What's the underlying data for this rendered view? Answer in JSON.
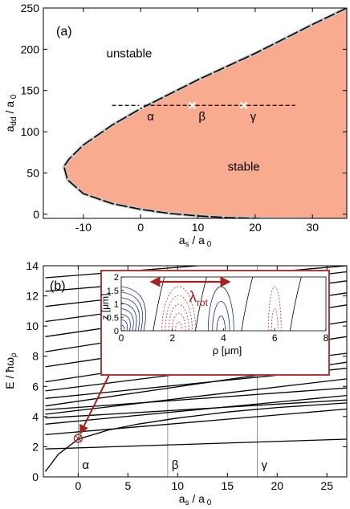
{
  "colors": {
    "stable_fill": "#f8ab8f",
    "curve": "#000000",
    "dash_highlight": "#c8c8c8",
    "inset_border": "#b03a3a",
    "arrow": "#a52020",
    "marker": "#ffffff",
    "contour_blue": "#1a2b8c",
    "contour_red": "#d42a2a"
  },
  "chart_data": [
    {
      "type": "area",
      "panel_label": "(a)",
      "xlabel": "a_s / a_0",
      "ylabel": "a_dd / a_0",
      "xlim": [
        -17,
        36
      ],
      "ylim": [
        -5,
        250
      ],
      "xticks": [
        -10,
        0,
        10,
        20,
        30
      ],
      "yticks": [
        0,
        50,
        100,
        150,
        200,
        250
      ],
      "grid": false,
      "region_labels": [
        {
          "text": "unstable",
          "x": -2,
          "y": 190
        },
        {
          "text": "stable",
          "x": 18,
          "y": 53
        }
      ],
      "stability_boundary": {
        "x": [
          36,
          30,
          20,
          10,
          0,
          -5,
          -10,
          -12.5,
          -13.4,
          -12.8,
          -10,
          -5,
          0,
          5,
          10,
          15,
          20,
          25,
          30,
          36
        ],
        "y": [
          250,
          230,
          195,
          163,
          128,
          108,
          84,
          67,
          58,
          42,
          25,
          13,
          6,
          1,
          -2,
          -4,
          -5,
          -6,
          -6,
          -7
        ]
      },
      "dashed_line": {
        "x": [
          -5,
          27
        ],
        "y": 132
      },
      "markers": [
        {
          "label": "α",
          "x": 0,
          "y": 132
        },
        {
          "label": "β",
          "x": 9,
          "y": 132
        },
        {
          "label": "γ",
          "x": 18,
          "y": 132
        }
      ]
    },
    {
      "type": "line",
      "panel_label": "(b)",
      "xlabel": "a_s / a_0",
      "ylabel": "E / ħω_ρ",
      "xlim": [
        -3.5,
        27
      ],
      "ylim": [
        0,
        14
      ],
      "xticks": [
        0,
        5,
        10,
        15,
        20,
        25
      ],
      "yticks": [
        0,
        2,
        4,
        6,
        8,
        10,
        12,
        14
      ],
      "grid": false,
      "vertical_markers": [
        {
          "label": "α",
          "x": 0
        },
        {
          "label": "β",
          "x": 9
        },
        {
          "label": "γ",
          "x": 18
        }
      ],
      "series": [
        {
          "x": [
            -3.3,
            -2,
            0,
            3,
            6,
            10,
            15,
            20,
            27
          ],
          "y": [
            0.35,
            1.5,
            2.5,
            3.1,
            3.5,
            3.9,
            4.3,
            4.6,
            4.9
          ]
        },
        {
          "x": [
            -3.3,
            27
          ],
          "y": [
            1.85,
            2.5
          ]
        },
        {
          "x": [
            -3.3,
            27
          ],
          "y": [
            2.8,
            4.5
          ]
        },
        {
          "x": [
            -3.3,
            27
          ],
          "y": [
            3.5,
            5.4
          ]
        },
        {
          "x": [
            -3.3,
            27
          ],
          "y": [
            3.9,
            5.1
          ]
        },
        {
          "x": [
            -3.3,
            27
          ],
          "y": [
            4.15,
            6.5
          ]
        },
        {
          "x": [
            -3.3,
            27
          ],
          "y": [
            4.45,
            5.9
          ]
        },
        {
          "x": [
            -3.3,
            27
          ],
          "y": [
            4.7,
            7.6
          ]
        },
        {
          "x": [
            -3.3,
            27
          ],
          "y": [
            5.2,
            7.2
          ]
        },
        {
          "x": [
            -3.3,
            27
          ],
          "y": [
            5.7,
            8.2
          ]
        },
        {
          "x": [
            -3.3,
            27
          ],
          "y": [
            6.3,
            9.3
          ]
        },
        {
          "x": [
            -3.3,
            27
          ],
          "y": [
            7.3,
            10.3
          ]
        },
        {
          "x": [
            -3.3,
            27
          ],
          "y": [
            8.3,
            11.4
          ]
        },
        {
          "x": [
            -3.3,
            27
          ],
          "y": [
            9.3,
            12.2
          ]
        },
        {
          "x": [
            -3.3,
            27
          ],
          "y": [
            10.3,
            13.0
          ]
        },
        {
          "x": [
            -3.3,
            27
          ],
          "y": [
            11.3,
            13.6
          ]
        },
        {
          "x": [
            -3.3,
            27
          ],
          "y": [
            12.3,
            14.0
          ]
        },
        {
          "x": [
            -3.3,
            12
          ],
          "y": [
            13.2,
            14.0
          ]
        }
      ],
      "highlight_point": {
        "x": 0,
        "y": 2.55
      },
      "inset": {
        "xlabel": "ρ [μm]",
        "ylabel": "z [μm]",
        "xlim": [
          0,
          8
        ],
        "ylim": [
          0,
          2
        ],
        "xticks": [
          0,
          2,
          4,
          6,
          8
        ],
        "yticks": [
          0,
          0.5,
          1,
          1.5,
          2
        ],
        "annotation": "λ",
        "annotation_sub": "rot",
        "arrow_x": [
          1.1,
          4.3
        ]
      }
    }
  ]
}
